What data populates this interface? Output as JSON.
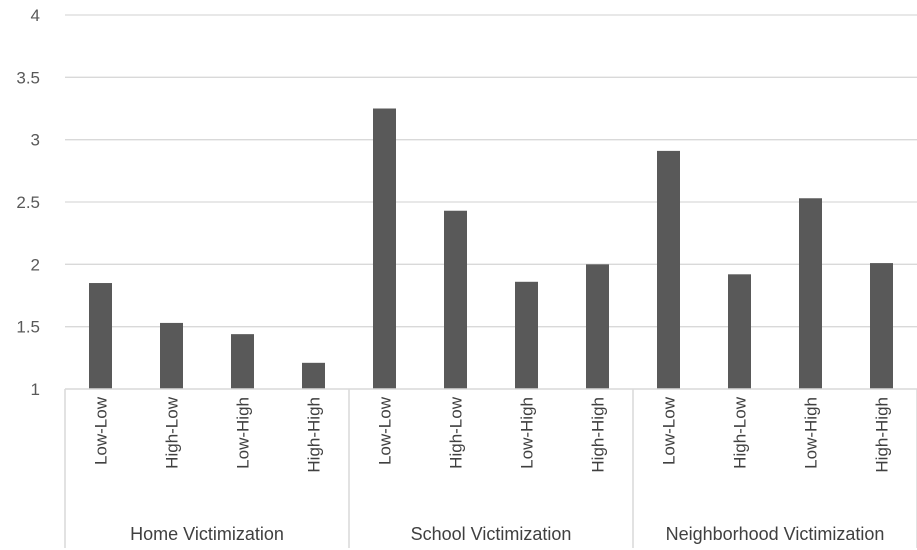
{
  "chart_data": {
    "type": "bar",
    "title": "",
    "xlabel": "",
    "ylabel": "",
    "ylim": [
      1,
      4
    ],
    "yticks": [
      "1",
      "1.5",
      "2",
      "2.5",
      "3",
      "3.5",
      "4"
    ],
    "ytick_values": [
      1,
      1.5,
      2,
      2.5,
      3,
      3.5,
      4
    ],
    "grid": true,
    "legend": "none",
    "bar_color": "#595959",
    "grid_color": "#d9d9d9",
    "groups": [
      {
        "label": "Home Victimization",
        "categories": [
          "Low-Low",
          "High-Low",
          "Low-High",
          "High-High"
        ],
        "values": [
          1.85,
          1.53,
          1.44,
          1.21
        ]
      },
      {
        "label": "School Victimization",
        "categories": [
          "Low-Low",
          "High-Low",
          "Low-High",
          "High-High"
        ],
        "values": [
          3.25,
          2.43,
          1.86,
          2.0
        ]
      },
      {
        "label": "Neighborhood Victimization",
        "categories": [
          "Low-Low",
          "High-Low",
          "Low-High",
          "High-High"
        ],
        "values": [
          2.91,
          1.92,
          2.53,
          2.01
        ]
      }
    ]
  }
}
